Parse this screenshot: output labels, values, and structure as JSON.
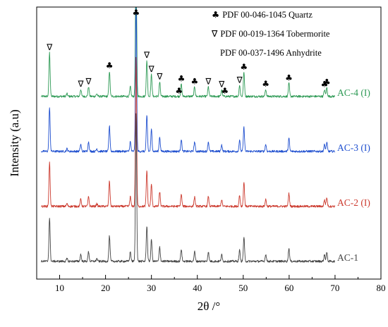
{
  "chart_data": {
    "type": "line",
    "xlabel": "2θ /°",
    "ylabel": "Intensity (a.u)",
    "xlim": [
      5,
      80
    ],
    "x_ticks": [
      "10",
      "20",
      "30",
      "40",
      "50",
      "60",
      "70",
      "80"
    ],
    "x_tick_values": [
      10,
      20,
      30,
      40,
      50,
      60,
      70,
      80
    ],
    "legend": {
      "placement": "top-right",
      "entries": [
        {
          "symbol": "♣",
          "symbol_name": "club-icon",
          "text": "PDF 00-046-1045 Quartz"
        },
        {
          "symbol": "∇",
          "symbol_name": "nabla-icon",
          "text": "PDF 00-019-1364 Tobermorite"
        },
        {
          "symbol": "",
          "symbol_name": "",
          "text": "PDF 00-037-1496 Anhydrite"
        }
      ]
    },
    "peaks": [
      {
        "x": 7.8,
        "h": 1.0
      },
      {
        "x": 11.6,
        "h": 0.06
      },
      {
        "x": 14.6,
        "h": 0.16
      },
      {
        "x": 16.3,
        "h": 0.22
      },
      {
        "x": 18.1,
        "h": 0.06
      },
      {
        "x": 20.85,
        "h": 0.58
      },
      {
        "x": 25.4,
        "h": 0.22
      },
      {
        "x": 26.65,
        "h": 3.4
      },
      {
        "x": 29.0,
        "h": 0.82
      },
      {
        "x": 30.0,
        "h": 0.5
      },
      {
        "x": 31.8,
        "h": 0.33
      },
      {
        "x": 36.5,
        "h": 0.28
      },
      {
        "x": 39.4,
        "h": 0.22
      },
      {
        "x": 42.4,
        "h": 0.22
      },
      {
        "x": 45.3,
        "h": 0.15
      },
      {
        "x": 49.2,
        "h": 0.25
      },
      {
        "x": 50.15,
        "h": 0.55
      },
      {
        "x": 54.9,
        "h": 0.16
      },
      {
        "x": 59.95,
        "h": 0.3
      },
      {
        "x": 67.7,
        "h": 0.15
      },
      {
        "x": 68.2,
        "h": 0.2
      }
    ],
    "series": [
      {
        "name": "AC-4 (I)",
        "color": "#2e9a55",
        "offset": 3
      },
      {
        "name": "AC-3 (I)",
        "color": "#1f4fcf",
        "offset": 2
      },
      {
        "name": "AC-2 (I)",
        "color": "#cc3a2e",
        "offset": 1
      },
      {
        "name": "AC-1",
        "color": "#444444",
        "offset": 0
      }
    ],
    "phase_markers": [
      {
        "symbol": "∇",
        "x": 7.8
      },
      {
        "symbol": "∇",
        "x": 14.6
      },
      {
        "symbol": "∇",
        "x": 16.3
      },
      {
        "symbol": "♣",
        "x": 20.85
      },
      {
        "symbol": "♣",
        "x": 26.65
      },
      {
        "symbol": "∇",
        "x": 29.0
      },
      {
        "symbol": "∇",
        "x": 30.0
      },
      {
        "symbol": "∇",
        "x": 31.8
      },
      {
        "symbol": "♣",
        "x": 36.0
      },
      {
        "symbol": "♣",
        "x": 36.5
      },
      {
        "symbol": "♣",
        "x": 39.4
      },
      {
        "symbol": "∇",
        "x": 42.4
      },
      {
        "symbol": "∇",
        "x": 45.3
      },
      {
        "symbol": "♣",
        "x": 46.0
      },
      {
        "symbol": "∇",
        "x": 49.2
      },
      {
        "symbol": "♣",
        "x": 50.15
      },
      {
        "symbol": "♣",
        "x": 54.9
      },
      {
        "symbol": "♣",
        "x": 59.95
      },
      {
        "symbol": "♣",
        "x": 67.7
      },
      {
        "symbol": "♣",
        "x": 68.2
      }
    ]
  }
}
